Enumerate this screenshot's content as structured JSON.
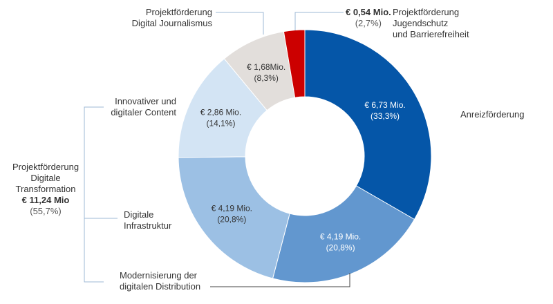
{
  "chart_data": {
    "type": "pie",
    "variant": "donut",
    "segments": [
      {
        "name": "Anreizförderung",
        "value": 6.73,
        "value_label": "€ 6,73 Mio.",
        "pct_label": "(33,3%)",
        "color": "#0556A8",
        "text_color": "#ffffff"
      },
      {
        "name": "Modernisierung der digitalen Distribution",
        "value": 4.19,
        "value_label": "€ 4,19 Mio.",
        "pct_label": "(20,8%)",
        "color": "#6297CF",
        "text_color": "#ffffff"
      },
      {
        "name": "Digitale Infrastruktur",
        "value": 4.19,
        "value_label": "€ 4,19 Mio.",
        "pct_label": "(20,8%)",
        "color": "#9CC0E4",
        "text_color": "#333333"
      },
      {
        "name": "Innovativer und digitaler Content",
        "value": 2.86,
        "value_label": "€ 2,86 Mio.",
        "pct_label": "(14,1%)",
        "color": "#D3E4F4",
        "text_color": "#333333"
      },
      {
        "name": "Projektförderung Digital Journalismus",
        "value": 1.68,
        "value_label": "€ 1,68Mio.",
        "pct_label": "(8,3%)",
        "color": "#E2DEDB",
        "text_color": "#333333"
      },
      {
        "name": "Projektförderung Jugendschutz und Barrierefreiheit",
        "value": 0.54,
        "value_label": "€ 0,54 Mio.",
        "pct_label": "(2,7%)",
        "color": "#CC0000",
        "text_color": "#333333"
      }
    ]
  },
  "labels": {
    "anreiz": "Anreizförderung",
    "modern_1": "Modernisierung der",
    "modern_2": "digitalen Distribution",
    "infra_1": "Digitale",
    "infra_2": "Infrastruktur",
    "content_1": "Innovativer  und",
    "content_2": "digitaler Content",
    "journalismus_1": "Projektförderung",
    "journalismus_2": "Digital Journalismus",
    "jugend_value": "€ 0,54 Mio.",
    "jugend_pct": "(2,7%)",
    "jugend_1": "Projektförderung",
    "jugend_2": "Jugendschutz",
    "jugend_3": "und Barrierefreiheit"
  },
  "group": {
    "line1": "Projektförderung",
    "line2": "Digitale",
    "line3": "Transformation",
    "value": "€ 11,24 Mio",
    "pct": "(55,7%)"
  }
}
